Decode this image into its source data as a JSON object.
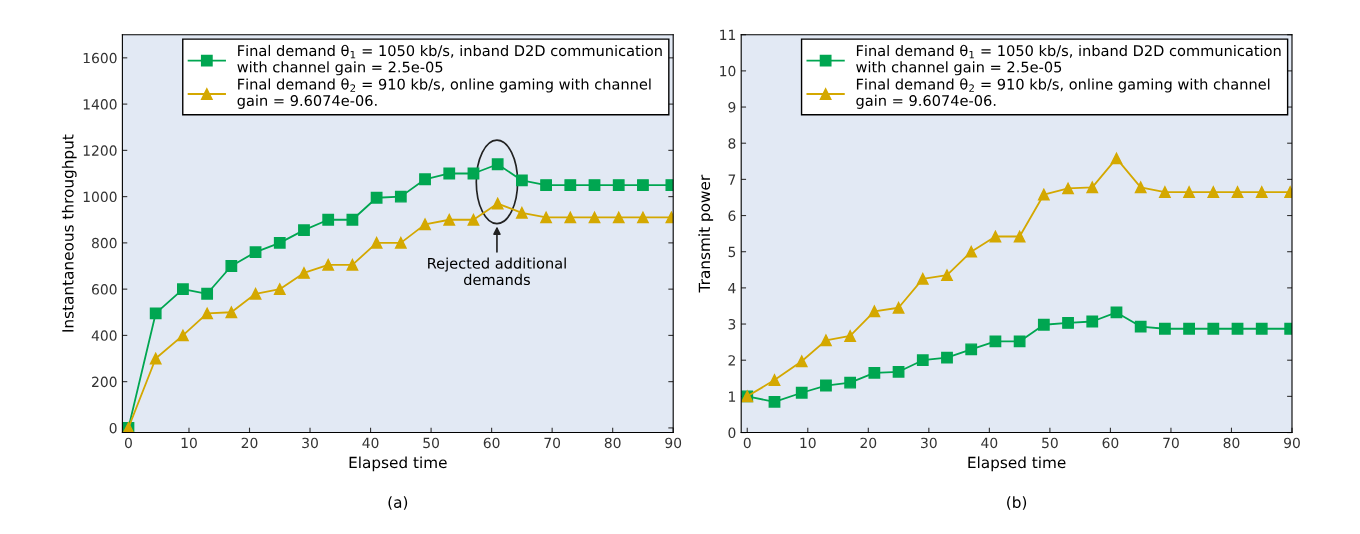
{
  "chart_data": [
    {
      "type": "line",
      "xlabel": "Elapsed time",
      "ylabel": "Instantaneous throughput",
      "x": [
        0,
        4.5,
        9,
        13,
        17,
        21,
        25,
        29,
        33,
        37,
        41,
        45,
        49,
        53,
        57,
        61,
        65,
        69,
        73,
        77,
        81,
        85,
        89.7
      ],
      "series": [
        {
          "name": "Final demand θ$_{1}$ = 1050 kb/s, inband D2D communication\nwith channel gain = 2.5e-05",
          "color": "#00a651",
          "marker": "square",
          "values": [
            0,
            495,
            600,
            580,
            700,
            760,
            800,
            855,
            900,
            900,
            995,
            1000,
            1075,
            1100,
            1100,
            1140,
            1070,
            1050,
            1050,
            1050,
            1050,
            1050,
            1050
          ]
        },
        {
          "name": "Final demand θ$_{2}$ = 910 kb/s, online gaming with channel\ngain = 9.6074e-06.",
          "color": "#d4a800",
          "marker": "triangle",
          "values": [
            0,
            300,
            400,
            495,
            500,
            580,
            600,
            670,
            705,
            705,
            800,
            800,
            880,
            900,
            900,
            970,
            930,
            910,
            910,
            910,
            910,
            910,
            910
          ]
        }
      ],
      "xlim": [
        -1,
        90
      ],
      "xticks": [
        0,
        10,
        20,
        30,
        40,
        50,
        60,
        70,
        80,
        90
      ],
      "ylim": [
        -20,
        1700
      ],
      "yticks": [
        0,
        200,
        400,
        600,
        800,
        1000,
        1200,
        1400,
        1600
      ],
      "grid": false,
      "legend": "top right",
      "annotations": [
        "Rejected additional demands",
        "(a)"
      ]
    },
    {
      "type": "line",
      "xlabel": "Elapsed time",
      "ylabel": "Transmit power",
      "x": [
        0,
        4.5,
        9,
        13,
        17,
        21,
        25,
        29,
        33,
        37,
        41,
        45,
        49,
        53,
        57,
        61,
        65,
        69,
        73,
        77,
        81,
        85,
        89.7
      ],
      "series": [
        {
          "name": "Final demand θ$_{1}$ = 1050 kb/s, inband D2D communication\nwith channel gain = 2.5e-05",
          "color": "#00a651",
          "marker": "square",
          "values": [
            1.0,
            0.85,
            1.1,
            1.3,
            1.38,
            1.65,
            1.68,
            2.0,
            2.07,
            2.3,
            2.52,
            2.52,
            2.98,
            3.03,
            3.07,
            3.32,
            2.93,
            2.87,
            2.87,
            2.87,
            2.87,
            2.87,
            2.87
          ]
        },
        {
          "name": "Final demand θ$_{2}$ = 910 kb/s, online gaming with channel\ngain = 9.6074e-06.",
          "color": "#d4a800",
          "marker": "triangle",
          "values": [
            1.0,
            1.45,
            1.97,
            2.55,
            2.67,
            3.35,
            3.45,
            4.25,
            4.35,
            5.0,
            5.42,
            5.42,
            6.58,
            6.75,
            6.78,
            7.58,
            6.78,
            6.65,
            6.65,
            6.65,
            6.65,
            6.65,
            6.65
          ]
        }
      ],
      "xlim": [
        -1,
        90
      ],
      "xticks": [
        0,
        10,
        20,
        30,
        40,
        50,
        60,
        70,
        80,
        90
      ],
      "ylim": [
        0,
        11
      ],
      "yticks": [
        0,
        1,
        2,
        3,
        4,
        5,
        6,
        7,
        8,
        9,
        10,
        11
      ],
      "grid": false,
      "legend": "top right",
      "annotations": [
        "(b)"
      ]
    }
  ]
}
